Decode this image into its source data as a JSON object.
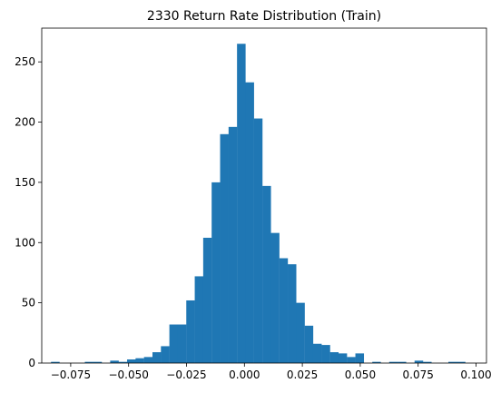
{
  "chart_data": {
    "type": "bar",
    "title": "2330 Return Rate Distribution (Train)",
    "xlabel": "",
    "ylabel": "",
    "bar_color": "#1f77b4",
    "xlim": [
      -0.0875,
      0.1045
    ],
    "ylim": [
      0,
      278
    ],
    "grid": false,
    "x_ticks": [
      {
        "value": -0.075,
        "label": "−0.075"
      },
      {
        "value": -0.05,
        "label": "−0.050"
      },
      {
        "value": -0.025,
        "label": "−0.025"
      },
      {
        "value": 0.0,
        "label": "0.000"
      },
      {
        "value": 0.025,
        "label": "0.025"
      },
      {
        "value": 0.05,
        "label": "0.050"
      },
      {
        "value": 0.075,
        "label": "0.075"
      },
      {
        "value": 0.1,
        "label": "0.100"
      }
    ],
    "y_ticks": [
      {
        "value": 0,
        "label": "0"
      },
      {
        "value": 50,
        "label": "50"
      },
      {
        "value": 100,
        "label": "100"
      },
      {
        "value": 150,
        "label": "150"
      },
      {
        "value": 200,
        "label": "200"
      },
      {
        "value": 250,
        "label": "250"
      }
    ],
    "bin_start": -0.0835,
    "bin_width": 0.00365,
    "counts": [
      1,
      0,
      0,
      0,
      1,
      1,
      0,
      2,
      1,
      3,
      4,
      5,
      9,
      14,
      32,
      32,
      52,
      72,
      104,
      150,
      190,
      196,
      265,
      233,
      203,
      147,
      108,
      87,
      82,
      50,
      31,
      16,
      15,
      9,
      8,
      5,
      8,
      0,
      1,
      0,
      1,
      1,
      0,
      2,
      1,
      0,
      0,
      1,
      1
    ]
  }
}
